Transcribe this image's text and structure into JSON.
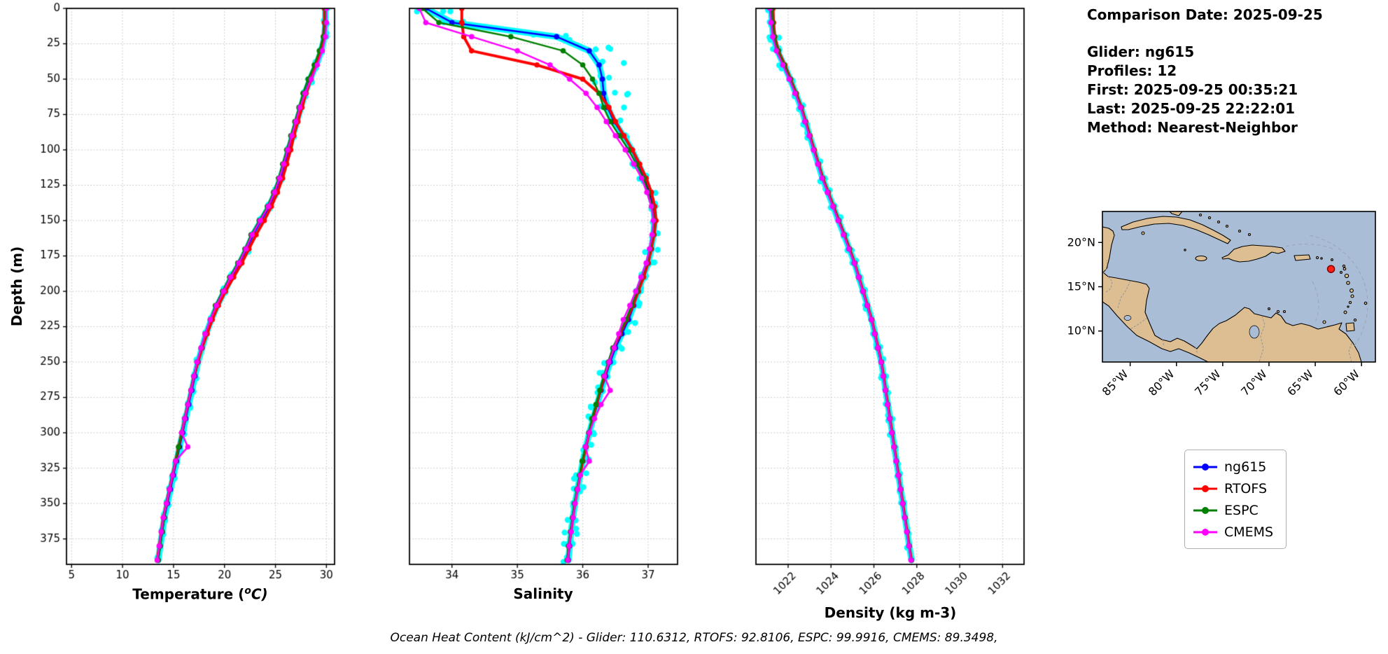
{
  "info_panel": {
    "comparison_date": "Comparison Date: 2025-09-25",
    "glider": "Glider: ng615",
    "profiles": "Profiles: 12",
    "first": "First: 2025-09-25 00:35:21",
    "last": "Last: 2025-09-25 22:22:01",
    "method": "Method: Nearest-Neighbor"
  },
  "footer": "Ocean Heat Content (kJ/cm^2) - Glider: 110.6312,  RTOFS: 92.8106,  ESPC: 99.9916,  CMEMS: 89.3498,",
  "footer_values": {
    "glider": 110.6312,
    "rtofs": 92.8106,
    "espc": 99.9916,
    "cmems": 89.3498
  },
  "legend": {
    "items": [
      {
        "label": "ng615",
        "color": "#0000ff"
      },
      {
        "label": "RTOFS",
        "color": "#ff0000"
      },
      {
        "label": "ESPC",
        "color": "#008000"
      },
      {
        "label": "CMEMS",
        "color": "#ff00ff"
      }
    ]
  },
  "axes": {
    "ylabel": "Depth (m)",
    "ylim": [
      0,
      393
    ],
    "yticks": [
      0,
      25,
      50,
      75,
      100,
      125,
      150,
      175,
      200,
      225,
      250,
      275,
      300,
      325,
      350,
      375
    ]
  },
  "chart_data": [
    {
      "type": "line",
      "xlabel": "Temperature (°C)",
      "xlabel_parts": {
        "pre": "Temperature (",
        "sup": "o",
        "post": "C)"
      },
      "xlim": [
        4.5,
        30.8
      ],
      "xticks": [
        5,
        10,
        15,
        20,
        25,
        30
      ],
      "rotate_xticklabels": false,
      "envelope": {
        "color": "#00ffff",
        "surface_amp": 0.25,
        "deep_amp": 0.16,
        "surface_depth": 60
      },
      "depths_m": [
        0,
        10,
        20,
        30,
        40,
        50,
        60,
        70,
        80,
        90,
        100,
        110,
        120,
        130,
        140,
        150,
        160,
        170,
        180,
        190,
        200,
        210,
        220,
        230,
        240,
        250,
        260,
        270,
        280,
        290,
        300,
        310,
        320,
        330,
        340,
        350,
        360,
        370,
        380,
        390
      ],
      "series": [
        {
          "name": "ng615",
          "color": "#0000ff",
          "lw": 2.5,
          "values": [
            29.9,
            29.9,
            29.8,
            29.5,
            29.0,
            28.4,
            27.9,
            27.5,
            27.1,
            26.7,
            26.3,
            25.9,
            25.5,
            25.0,
            24.4,
            23.6,
            22.8,
            22.2,
            21.5,
            20.7,
            20.0,
            19.3,
            18.7,
            18.2,
            17.8,
            17.4,
            17.1,
            16.8,
            16.5,
            16.2,
            15.9,
            15.6,
            15.3,
            15.0,
            14.7,
            14.4,
            14.1,
            13.9,
            13.7,
            13.5
          ]
        },
        {
          "name": "RTOFS",
          "color": "#ff0000",
          "lw": 4,
          "values": [
            29.8,
            29.8,
            29.7,
            29.4,
            29.0,
            28.5,
            28.0,
            27.6,
            27.2,
            26.8,
            26.5,
            26.1,
            25.7,
            25.2,
            24.6,
            23.9,
            23.1,
            22.4,
            21.7,
            20.9,
            20.1,
            19.4,
            18.8,
            18.3,
            17.8,
            17.4,
            17.0,
            16.7,
            16.4,
            16.1,
            15.8,
            15.5,
            15.2,
            14.9,
            14.6,
            14.3,
            14.0,
            13.8,
            13.6,
            13.4
          ]
        },
        {
          "name": "ESPC",
          "color": "#008000",
          "lw": 2.5,
          "values": [
            29.9,
            29.9,
            29.7,
            29.3,
            28.8,
            28.2,
            27.7,
            27.3,
            26.9,
            26.5,
            26.1,
            25.7,
            25.3,
            24.8,
            24.2,
            23.4,
            22.6,
            22.0,
            21.3,
            20.5,
            19.8,
            19.1,
            18.6,
            18.1,
            17.7,
            17.3,
            17.0,
            16.7,
            16.4,
            16.1,
            15.8,
            15.5,
            15.2,
            14.9,
            14.6,
            14.3,
            14.1,
            13.9,
            13.7,
            13.5
          ]
        },
        {
          "name": "CMEMS",
          "color": "#ff00ff",
          "lw": 2.5,
          "values": [
            30.0,
            30.0,
            29.9,
            29.6,
            29.1,
            28.5,
            27.9,
            27.4,
            27.0,
            26.6,
            26.2,
            25.8,
            25.4,
            24.9,
            24.3,
            23.5,
            22.7,
            22.1,
            21.4,
            20.6,
            19.9,
            19.2,
            18.6,
            18.1,
            17.7,
            17.3,
            17.0,
            16.7,
            16.4,
            16.1,
            15.8,
            16.4,
            15.2,
            14.9,
            14.6,
            14.3,
            14.0,
            13.8,
            13.6,
            13.4
          ]
        }
      ]
    },
    {
      "type": "line",
      "xlabel": "Salinity",
      "xlim": [
        33.35,
        37.45
      ],
      "xticks": [
        34,
        35,
        36,
        37
      ],
      "rotate_xticklabels": false,
      "envelope": {
        "color": "#00ffff",
        "surface_amp": 0.38,
        "deep_amp": 0.1,
        "surface_depth": 75
      },
      "depths_m": [
        0,
        10,
        20,
        30,
        40,
        50,
        60,
        70,
        80,
        90,
        100,
        110,
        120,
        130,
        140,
        150,
        160,
        170,
        180,
        190,
        200,
        210,
        220,
        230,
        240,
        250,
        260,
        270,
        280,
        290,
        300,
        310,
        320,
        330,
        340,
        350,
        360,
        370,
        380,
        390
      ],
      "series": [
        {
          "name": "ng615",
          "color": "#0000ff",
          "lw": 2.5,
          "values": [
            33.6,
            34.0,
            35.6,
            36.1,
            36.25,
            36.3,
            36.32,
            36.38,
            36.48,
            36.62,
            36.75,
            36.85,
            36.95,
            37.02,
            37.08,
            37.1,
            37.08,
            37.05,
            37.0,
            36.92,
            36.85,
            36.78,
            36.7,
            36.6,
            36.5,
            36.42,
            36.35,
            36.28,
            36.22,
            36.16,
            36.1,
            36.05,
            36.0,
            35.96,
            35.92,
            35.88,
            35.85,
            35.82,
            35.8,
            35.78
          ]
        },
        {
          "name": "RTOFS",
          "color": "#ff0000",
          "lw": 4,
          "values": [
            34.15,
            34.15,
            34.18,
            34.3,
            35.3,
            36.0,
            36.25,
            36.4,
            36.5,
            36.63,
            36.76,
            36.87,
            36.97,
            37.05,
            37.1,
            37.12,
            37.09,
            37.05,
            37.0,
            36.93,
            36.85,
            36.77,
            36.67,
            36.57,
            36.47,
            36.4,
            36.33,
            36.27,
            36.21,
            36.15,
            36.1,
            36.05,
            36.0,
            35.96,
            35.92,
            35.88,
            35.85,
            35.82,
            35.79,
            35.77
          ]
        },
        {
          "name": "ESPC",
          "color": "#008000",
          "lw": 2.5,
          "values": [
            33.55,
            33.8,
            34.9,
            35.7,
            36.0,
            36.15,
            36.25,
            36.32,
            36.42,
            36.56,
            36.7,
            36.82,
            36.93,
            37.0,
            37.06,
            37.09,
            37.07,
            37.03,
            36.98,
            36.9,
            36.83,
            36.75,
            36.66,
            36.56,
            36.46,
            36.39,
            36.32,
            36.26,
            36.2,
            36.14,
            36.09,
            36.04,
            35.99,
            35.95,
            35.91,
            35.87,
            35.84,
            35.81,
            35.78,
            35.76
          ]
        },
        {
          "name": "CMEMS",
          "color": "#ff00ff",
          "lw": 2.5,
          "values": [
            33.5,
            33.6,
            34.3,
            35.0,
            35.5,
            35.8,
            36.05,
            36.22,
            36.36,
            36.5,
            36.65,
            36.78,
            36.9,
            36.98,
            37.05,
            37.08,
            37.06,
            37.02,
            36.97,
            36.89,
            36.81,
            36.72,
            36.62,
            36.55,
            36.48,
            36.4,
            36.33,
            36.42,
            36.28,
            36.18,
            36.1,
            36.04,
            36.1,
            35.96,
            35.92,
            35.88,
            35.85,
            35.82,
            35.79,
            35.77
          ]
        }
      ]
    },
    {
      "type": "line",
      "xlabel": "Density (kg m-3)",
      "xlim": [
        1020.5,
        1033
      ],
      "xticks": [
        1022,
        1024,
        1026,
        1028,
        1030,
        1032
      ],
      "rotate_xticklabels": true,
      "envelope": {
        "color": "#00ffff",
        "surface_amp": 0.3,
        "deep_amp": 0.12,
        "surface_depth": 50
      },
      "depths_m": [
        0,
        10,
        20,
        30,
        40,
        50,
        60,
        70,
        80,
        90,
        100,
        110,
        120,
        130,
        140,
        150,
        160,
        170,
        180,
        190,
        200,
        210,
        220,
        230,
        240,
        250,
        260,
        270,
        280,
        290,
        300,
        310,
        320,
        330,
        340,
        350,
        360,
        370,
        380,
        390
      ],
      "series": [
        {
          "name": "ng615",
          "color": "#0000ff",
          "lw": 2.5,
          "values": [
            1021.2,
            1021.25,
            1021.3,
            1021.5,
            1021.8,
            1022.1,
            1022.35,
            1022.6,
            1022.8,
            1023.0,
            1023.2,
            1023.4,
            1023.6,
            1023.85,
            1024.1,
            1024.35,
            1024.6,
            1024.85,
            1025.1,
            1025.3,
            1025.5,
            1025.7,
            1025.9,
            1026.05,
            1026.2,
            1026.35,
            1026.45,
            1026.55,
            1026.65,
            1026.75,
            1026.85,
            1026.95,
            1027.05,
            1027.15,
            1027.25,
            1027.35,
            1027.45,
            1027.55,
            1027.65,
            1027.75
          ]
        },
        {
          "name": "RTOFS",
          "color": "#ff0000",
          "lw": 4,
          "values": [
            1021.3,
            1021.32,
            1021.38,
            1021.55,
            1021.85,
            1022.12,
            1022.38,
            1022.62,
            1022.82,
            1023.02,
            1023.22,
            1023.42,
            1023.62,
            1023.87,
            1024.12,
            1024.37,
            1024.62,
            1024.87,
            1025.1,
            1025.3,
            1025.5,
            1025.7,
            1025.9,
            1026.05,
            1026.2,
            1026.35,
            1026.45,
            1026.55,
            1026.65,
            1026.75,
            1026.85,
            1026.95,
            1027.05,
            1027.15,
            1027.25,
            1027.35,
            1027.45,
            1027.55,
            1027.65,
            1027.75
          ]
        },
        {
          "name": "ESPC",
          "color": "#008000",
          "lw": 2.5,
          "values": [
            1021.25,
            1021.28,
            1021.35,
            1021.52,
            1021.82,
            1022.1,
            1022.36,
            1022.6,
            1022.8,
            1023.0,
            1023.2,
            1023.4,
            1023.6,
            1023.85,
            1024.1,
            1024.35,
            1024.6,
            1024.85,
            1025.08,
            1025.28,
            1025.48,
            1025.68,
            1025.88,
            1026.03,
            1026.18,
            1026.33,
            1026.44,
            1026.54,
            1026.64,
            1026.74,
            1026.84,
            1026.94,
            1027.04,
            1027.14,
            1027.24,
            1027.34,
            1027.44,
            1027.54,
            1027.64,
            1027.74
          ]
        },
        {
          "name": "CMEMS",
          "color": "#ff00ff",
          "lw": 2.5,
          "values": [
            1021.15,
            1021.2,
            1021.28,
            1021.45,
            1021.75,
            1022.05,
            1022.32,
            1022.58,
            1022.78,
            1022.98,
            1023.18,
            1023.38,
            1023.58,
            1023.83,
            1024.08,
            1024.33,
            1024.58,
            1024.83,
            1025.08,
            1025.28,
            1025.48,
            1025.68,
            1025.88,
            1026.03,
            1026.18,
            1026.33,
            1026.43,
            1026.53,
            1026.63,
            1026.73,
            1026.83,
            1026.93,
            1027.03,
            1027.13,
            1027.23,
            1027.33,
            1027.43,
            1027.53,
            1027.63,
            1027.73
          ]
        }
      ]
    }
  ],
  "map": {
    "extent": {
      "lon_min": -88,
      "lon_max": -58.5,
      "lat_min": 6.5,
      "lat_max": 23.5
    },
    "lat_ticks": [
      {
        "label": "20°N",
        "value": 20
      },
      {
        "label": "15°N",
        "value": 15
      },
      {
        "label": "10°N",
        "value": 10
      }
    ],
    "lon_ticks": [
      {
        "label": "85°W",
        "value": -85
      },
      {
        "label": "80°W",
        "value": -80
      },
      {
        "label": "75°W",
        "value": -75
      },
      {
        "label": "70°W",
        "value": -70
      },
      {
        "label": "65°W",
        "value": -65
      },
      {
        "label": "60°W",
        "value": -60
      }
    ],
    "glider_position": {
      "lon": -63.3,
      "lat": 17.0
    },
    "colors": {
      "ocean": "#a9bdd7",
      "land": "#ddbe92",
      "marker": "#ff1f14"
    }
  }
}
